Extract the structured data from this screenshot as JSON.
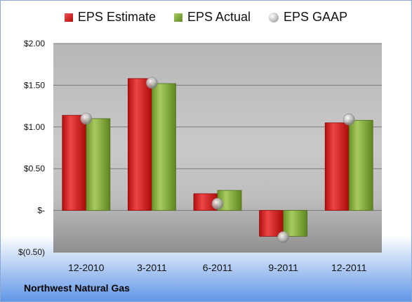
{
  "company": "Northwest Natural Gas",
  "colors": {
    "estimate": "#d42020",
    "actual": "#86ad3d",
    "gaap": "#b5b5b5",
    "background_top": "#ffffff",
    "background_bottom": "#5f95e6"
  },
  "chart_data": {
    "type": "bar",
    "categories": [
      "12-2010",
      "3-2011",
      "6-2011",
      "9-2011",
      "12-2011"
    ],
    "series": [
      {
        "name": "EPS Estimate",
        "values": [
          1.14,
          1.58,
          0.2,
          -0.31,
          1.05
        ]
      },
      {
        "name": "EPS Actual",
        "values": [
          1.1,
          1.52,
          0.24,
          -0.31,
          1.08
        ]
      },
      {
        "name": "EPS GAAP",
        "values": [
          1.1,
          1.53,
          0.08,
          -0.32,
          1.09
        ]
      }
    ],
    "yticks": [
      "$(0.50)",
      "$-",
      "$0.50",
      "$1.00",
      "$1.50",
      "$2.00"
    ],
    "ylim": [
      -0.5,
      2.0
    ],
    "grid": true,
    "legend_position": "top"
  }
}
